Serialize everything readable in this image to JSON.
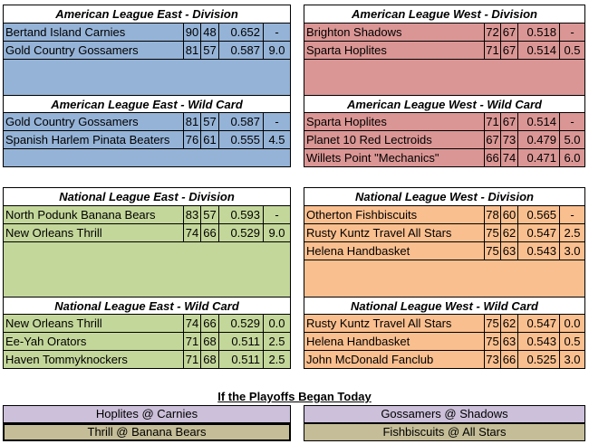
{
  "ale": {
    "div_title": "American League East - Division",
    "div_rows": [
      {
        "team": "Bertand Island Carnies",
        "w": "90",
        "l": "48",
        "pct": "0.652",
        "gb": "-"
      },
      {
        "team": "Gold Country Gossamers",
        "w": "81",
        "l": "57",
        "pct": "0.587",
        "gb": "9.0"
      }
    ],
    "wc_title": "American League East - Wild Card",
    "wc_rows": [
      {
        "team": "Gold Country Gossamers",
        "w": "81",
        "l": "57",
        "pct": "0.587",
        "gb": "-"
      },
      {
        "team": "Spanish Harlem Pinata Beaters",
        "w": "76",
        "l": "61",
        "pct": "0.555",
        "gb": "4.5"
      }
    ]
  },
  "alw": {
    "div_title": "American League West - Division",
    "div_rows": [
      {
        "team": "Brighton Shadows",
        "w": "72",
        "l": "67",
        "pct": "0.518",
        "gb": "-"
      },
      {
        "team": "Sparta Hoplites",
        "w": "71",
        "l": "67",
        "pct": "0.514",
        "gb": "0.5"
      }
    ],
    "wc_title": "American League West - Wild Card",
    "wc_rows": [
      {
        "team": "Sparta Hoplites",
        "w": "71",
        "l": "67",
        "pct": "0.514",
        "gb": "-"
      },
      {
        "team": "Planet 10 Red Lectroids",
        "w": "67",
        "l": "73",
        "pct": "0.479",
        "gb": "5.0"
      },
      {
        "team": "Willets Point \"Mechanics\"",
        "w": "66",
        "l": "74",
        "pct": "0.471",
        "gb": "6.0"
      }
    ]
  },
  "nle": {
    "div_title": "National League East - Division",
    "div_rows": [
      {
        "team": "North Podunk Banana Bears",
        "w": "83",
        "l": "57",
        "pct": "0.593",
        "gb": "-"
      },
      {
        "team": "New Orleans Thrill",
        "w": "74",
        "l": "66",
        "pct": "0.529",
        "gb": "9.0"
      }
    ],
    "wc_title": "National League East - Wild Card",
    "wc_rows": [
      {
        "team": "New Orleans Thrill",
        "w": "74",
        "l": "66",
        "pct": "0.529",
        "gb": "0.0"
      },
      {
        "team": "Ee-Yah Orators",
        "w": "71",
        "l": "68",
        "pct": "0.511",
        "gb": "2.5"
      },
      {
        "team": "Haven Tommyknockers",
        "w": "71",
        "l": "68",
        "pct": "0.511",
        "gb": "2.5"
      }
    ]
  },
  "nlw": {
    "div_title": "National League West - Division",
    "div_rows": [
      {
        "team": "Otherton Fishbiscuits",
        "w": "78",
        "l": "60",
        "pct": "0.565",
        "gb": "-"
      },
      {
        "team": "Rusty Kuntz Travel All Stars",
        "w": "75",
        "l": "62",
        "pct": "0.547",
        "gb": "2.5"
      },
      {
        "team": "Helena Handbasket",
        "w": "75",
        "l": "63",
        "pct": "0.543",
        "gb": "3.0"
      }
    ],
    "wc_title": "National League West - Wild Card",
    "wc_rows": [
      {
        "team": "Rusty Kuntz Travel All Stars",
        "w": "75",
        "l": "62",
        "pct": "0.547",
        "gb": "0.0"
      },
      {
        "team": "Helena Handbasket",
        "w": "75",
        "l": "63",
        "pct": "0.543",
        "gb": "0.5"
      },
      {
        "team": "John McDonald Fanclub",
        "w": "73",
        "l": "66",
        "pct": "0.525",
        "gb": "3.0"
      }
    ]
  },
  "playoffs": {
    "title": "If the Playoffs Began Today",
    "matchups": [
      "Hoplites @ Carnies",
      "Gossamers @ Shadows",
      "Thrill @ Banana Bears",
      "Fishbiscuits @ All Stars"
    ]
  },
  "colors": {
    "al_east": "#95b3d7",
    "al_west": "#da9694",
    "nl_east": "#c4d79b",
    "nl_west": "#fabf8f",
    "al_matchup": "#ccc0da",
    "nl_matchup": "#c4bd97"
  }
}
